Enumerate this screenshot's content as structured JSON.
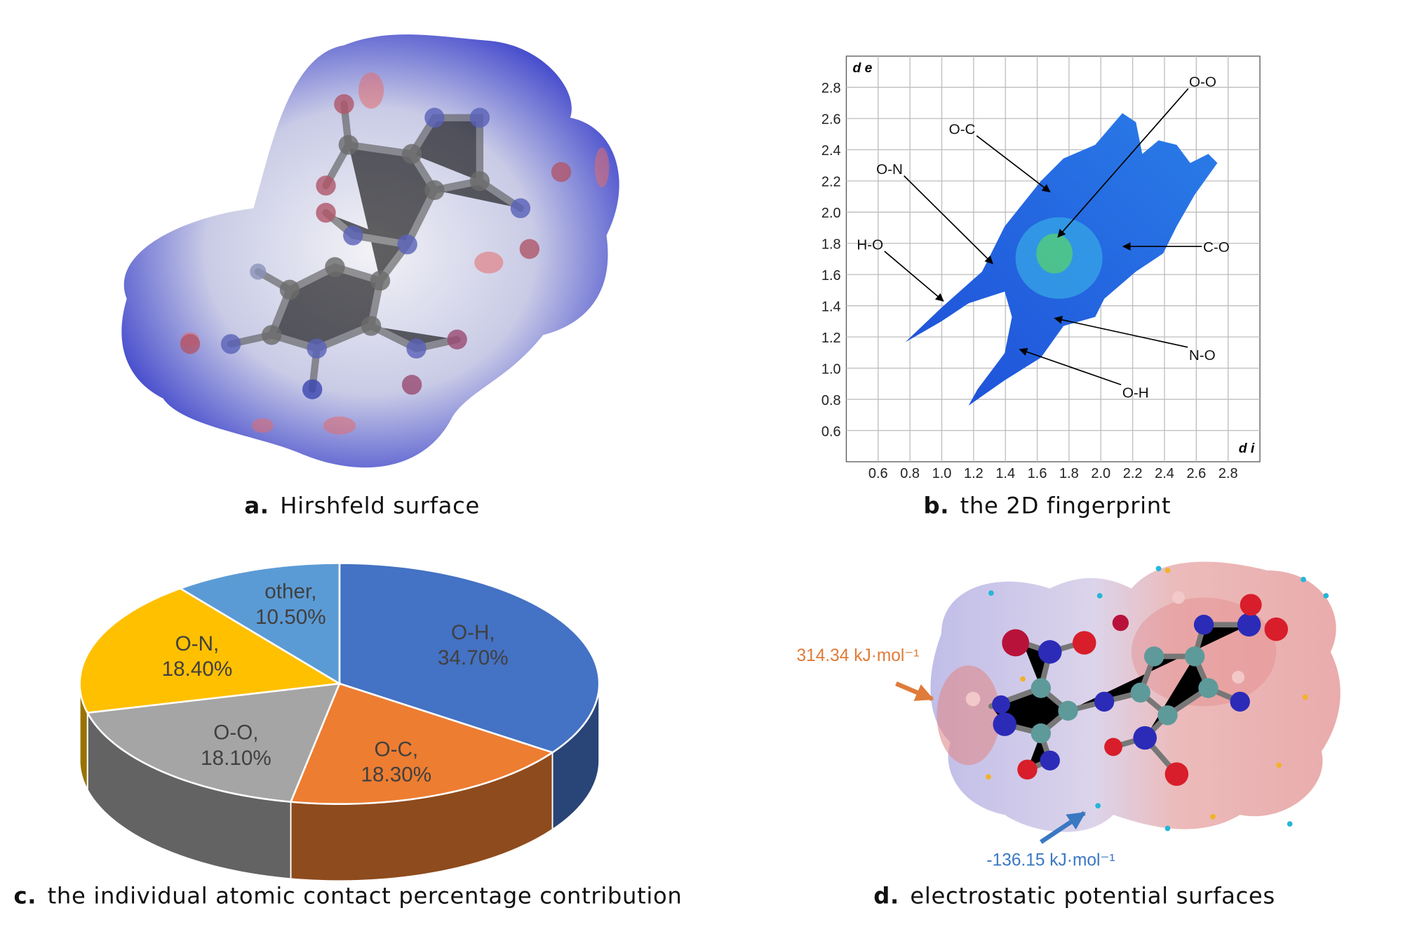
{
  "panels": [
    {
      "letter": "a.",
      "caption": "Hirshfeld surface"
    },
    {
      "letter": "b.",
      "caption": "the 2D fingerprint"
    },
    {
      "letter": "c.",
      "caption": "the individual atomic contact percentage contribution"
    },
    {
      "letter": "d.",
      "caption": "electrostatic potential surfaces",
      "annotations": [
        "314.34 kJ·mol⁻¹",
        "-136.15 kJ·mol⁻¹"
      ]
    }
  ],
  "chart_data": [
    {
      "type": "fingerprint",
      "xlabel": "d i",
      "ylabel": "d e",
      "xlim": [
        0.4,
        3.0
      ],
      "ylim": [
        0.4,
        3.0
      ],
      "xticks": [
        0.6,
        0.8,
        {
          "value": 1,
          "label": "1.0"
        },
        1.2,
        1.4,
        1.6,
        1.8,
        {
          "value": 2,
          "label": "2.0"
        },
        2.2,
        2.4,
        2.6,
        2.8
      ],
      "yticks": [
        0.6,
        0.8,
        {
          "value": 1,
          "label": "1.0"
        },
        1.2,
        1.4,
        1.6,
        1.8,
        {
          "value": 2,
          "label": "2.0"
        },
        2.2,
        2.4,
        2.6,
        2.8
      ],
      "grid": true,
      "annotations": [
        {
          "text": "O-O",
          "x": 1.73,
          "y": 1.84
        },
        {
          "text": "O-C",
          "x": 1.68,
          "y": 2.13
        },
        {
          "text": "O-N",
          "x": 1.32,
          "y": 1.67
        },
        {
          "text": "H-O",
          "x": 1.01,
          "y": 1.43
        },
        {
          "text": "C-O",
          "x": 2.14,
          "y": 1.78
        },
        {
          "text": "N-O",
          "x": 1.71,
          "y": 1.32
        },
        {
          "text": "O-H",
          "x": 1.49,
          "y": 1.12
        }
      ]
    },
    {
      "type": "pie3d",
      "categories": [
        "O-H,",
        "O-C,",
        "O-O,",
        "O-N,",
        "other,"
      ],
      "values": [
        34.7,
        18.3,
        18.1,
        18.4,
        10.5
      ],
      "value_labels": [
        "34.70%",
        "18.30%",
        "18.10%",
        "18.40%",
        "10.50%"
      ],
      "colors": [
        "#4472c4",
        "#ed7d31",
        "#a5a5a5",
        "#ffc000",
        "#5b9bd5"
      ]
    }
  ]
}
